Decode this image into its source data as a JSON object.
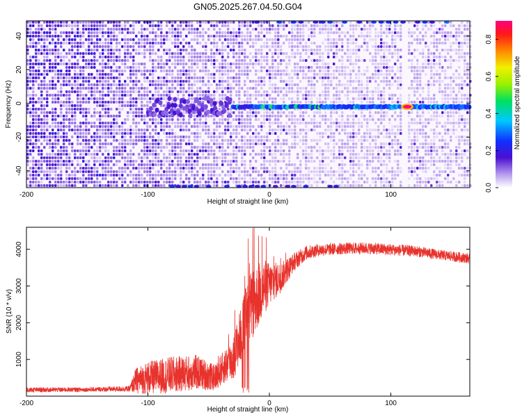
{
  "title": "GN05.2025.267.04.50.G04",
  "colors": {
    "snr_line": "#e8322c",
    "spec_low": "#d9c9f2",
    "spec_mid": "#6a2bd8",
    "spec_deep": "#3b07c8"
  },
  "chart_data": [
    {
      "type": "heatmap",
      "name": "spectrogram",
      "xlabel": "Height of straight line (km)",
      "ylabel": "Frequency (Hz)",
      "xlim": [
        -200,
        165
      ],
      "ylim": [
        -50,
        49
      ],
      "xticks": [
        -200,
        -100,
        0,
        100
      ],
      "yticks": [
        -40,
        -20,
        0,
        20,
        40
      ],
      "xtick_labels": [
        "-200",
        "-100",
        "0",
        "100"
      ],
      "ytick_labels": [
        "-40",
        "-20",
        "0",
        "20",
        "40"
      ],
      "colorbar": {
        "label": "Normalized spectral amplitude",
        "range": [
          0,
          0.9
        ],
        "ticks": [
          0.0,
          0.2,
          0.4,
          0.6,
          0.8
        ],
        "tick_labels": [
          "0.0",
          "0.2",
          "0.4",
          "0.6",
          "0.8"
        ]
      },
      "features": {
        "signal_frequency_hz": -2,
        "signal_start_km": -30,
        "gap_x_km": [
          108,
          112
        ],
        "peak": {
          "x_km": 110,
          "amplitude": 0.9
        },
        "noise_amplitude_range": [
          0.0,
          0.25
        ]
      }
    },
    {
      "type": "line",
      "name": "snr",
      "xlabel": "Height of straight line (km)",
      "ylabel": "SNR (10 * v/v)",
      "xlim": [
        -200,
        165
      ],
      "ylim": [
        0,
        4600
      ],
      "xticks": [
        -200,
        -100,
        0,
        100
      ],
      "yticks": [
        1000,
        2000,
        3000,
        4000
      ],
      "xtick_labels": [
        "-200",
        "-100",
        "0",
        "100"
      ],
      "ytick_labels": [
        "1000",
        "2000",
        "3000",
        "4000"
      ],
      "envelope": {
        "x": [
          -200,
          -150,
          -115,
          -110,
          -100,
          -80,
          -60,
          -45,
          -38,
          -30,
          -25,
          -20,
          -15,
          -10,
          -5,
          0,
          10,
          20,
          30,
          40,
          60,
          80,
          100,
          120,
          140,
          165
        ],
        "mean": [
          170,
          180,
          200,
          420,
          500,
          580,
          650,
          500,
          780,
          1000,
          1550,
          2050,
          2450,
          2700,
          2950,
          3050,
          3250,
          3650,
          3900,
          3980,
          4020,
          4030,
          3990,
          3950,
          3850,
          3750
        ],
        "spread": [
          70,
          60,
          80,
          350,
          450,
          500,
          480,
          350,
          450,
          600,
          700,
          900,
          1000,
          900,
          800,
          600,
          400,
          250,
          200,
          170,
          160,
          160,
          160,
          150,
          140,
          140
        ]
      }
    }
  ]
}
